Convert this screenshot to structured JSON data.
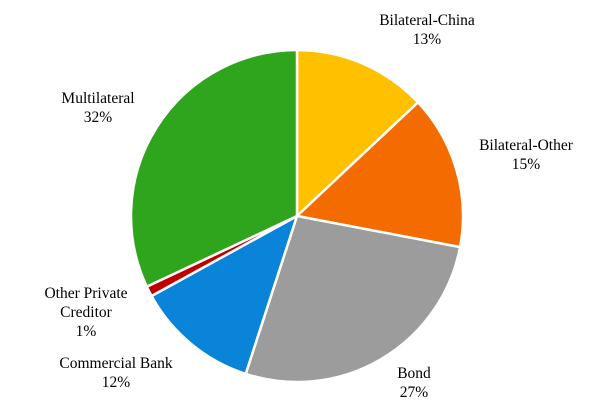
{
  "chart_data": {
    "type": "pie",
    "title": "",
    "slices": [
      {
        "label": "Bilateral-China",
        "value": 13,
        "display": "13%",
        "color": "#FFC000",
        "label_lines": [
          "Bilateral-China",
          "13%"
        ]
      },
      {
        "label": "Bilateral-Other",
        "value": 15,
        "display": "15%",
        "color": "#F46C00",
        "label_lines": [
          "Bilateral-Other",
          "15%"
        ]
      },
      {
        "label": "Bond",
        "value": 27,
        "display": "27%",
        "color": "#9C9C9C",
        "label_lines": [
          "Bond",
          "27%"
        ]
      },
      {
        "label": "Commercial Bank",
        "value": 12,
        "display": "12%",
        "color": "#0A84D8",
        "label_lines": [
          "Commercial Bank",
          "12%"
        ]
      },
      {
        "label": "Other Private Creditor",
        "value": 1,
        "display": "1%",
        "color": "#C00000",
        "label_lines": [
          "Other Private",
          "Creditor",
          "1%"
        ]
      },
      {
        "label": "Multilateral",
        "value": 32,
        "display": "32%",
        "color": "#2FA51E",
        "label_lines": [
          "Multilateral",
          "32%"
        ]
      }
    ],
    "start_angle": "12 o'clock",
    "direction": "clockwise",
    "legend": "none"
  }
}
